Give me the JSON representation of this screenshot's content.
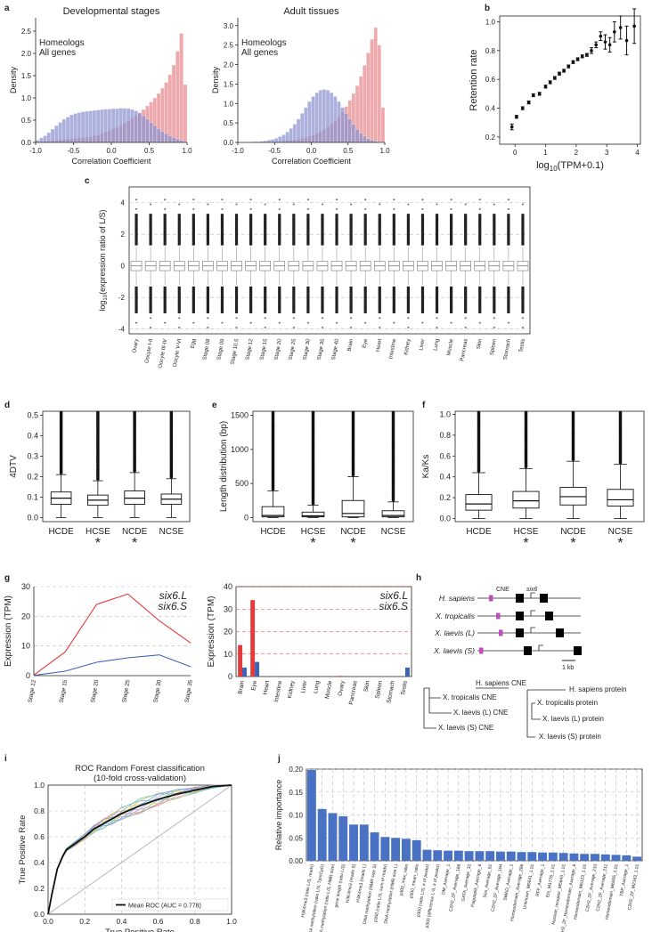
{
  "panels": [
    "a",
    "b",
    "c",
    "d",
    "e",
    "f",
    "g",
    "h",
    "i",
    "j"
  ],
  "colors": {
    "homeolog": "#e7888c",
    "allgenes": "#8c92cf",
    "overlap": "#a8578a",
    "red": "#e33b3b",
    "blue": "#3c62b6",
    "bar": "#4a72c4"
  },
  "chart_data": [
    {
      "id": "a1",
      "type": "bar",
      "title": "Developmental stages",
      "xlabel": "Correlation Coefficient",
      "ylabel": "Density",
      "xlim": [
        -1,
        1
      ],
      "ylim": [
        0,
        2.8
      ],
      "xticks": [
        "-1.0",
        "-0.5",
        "0.0",
        "0.5",
        "1.0"
      ],
      "yticks": [
        "0.0",
        "0.5",
        "1.0",
        "1.5",
        "2.0",
        "2.5"
      ],
      "legend": [
        "Homeologs",
        "All genes"
      ],
      "x": [
        -0.975,
        -0.925,
        -0.875,
        -0.825,
        -0.775,
        -0.725,
        -0.675,
        -0.625,
        -0.575,
        -0.525,
        -0.475,
        -0.425,
        -0.375,
        -0.325,
        -0.275,
        -0.225,
        -0.175,
        -0.125,
        -0.075,
        -0.025,
        0.025,
        0.075,
        0.125,
        0.175,
        0.225,
        0.275,
        0.325,
        0.375,
        0.425,
        0.475,
        0.525,
        0.575,
        0.625,
        0.675,
        0.725,
        0.775,
        0.825,
        0.875,
        0.925,
        0.975
      ],
      "series": [
        {
          "name": "Homeologs",
          "values": [
            0.01,
            0.02,
            0.03,
            0.03,
            0.04,
            0.05,
            0.05,
            0.06,
            0.07,
            0.08,
            0.09,
            0.1,
            0.11,
            0.12,
            0.13,
            0.15,
            0.17,
            0.2,
            0.23,
            0.26,
            0.3,
            0.34,
            0.38,
            0.43,
            0.48,
            0.54,
            0.6,
            0.67,
            0.74,
            0.82,
            0.91,
            1.0,
            1.1,
            1.22,
            1.35,
            1.52,
            1.74,
            2.05,
            2.45,
            1.3
          ]
        },
        {
          "name": "All genes",
          "values": [
            0.05,
            0.1,
            0.15,
            0.22,
            0.3,
            0.38,
            0.45,
            0.52,
            0.57,
            0.62,
            0.65,
            0.67,
            0.69,
            0.7,
            0.71,
            0.72,
            0.73,
            0.74,
            0.75,
            0.75,
            0.76,
            0.76,
            0.77,
            0.77,
            0.76,
            0.74,
            0.71,
            0.66,
            0.6,
            0.53,
            0.45,
            0.38,
            0.31,
            0.25,
            0.2,
            0.15,
            0.11,
            0.08,
            0.05,
            0.02
          ]
        }
      ]
    },
    {
      "id": "a2",
      "type": "bar",
      "title": "Adult tissues",
      "xlabel": "Correlation Coefficient",
      "ylabel": "Density",
      "xlim": [
        -1,
        1
      ],
      "ylim": [
        0,
        3.2
      ],
      "xticks": [
        "-1.0",
        "-0.5",
        "0.0",
        "0.5",
        "1.0"
      ],
      "yticks": [
        "0.0",
        "0.5",
        "1.0",
        "1.5",
        "2.0",
        "2.5",
        "3.0"
      ],
      "legend": [
        "Homeologs",
        "All genes"
      ],
      "x": [
        -0.975,
        -0.925,
        -0.875,
        -0.825,
        -0.775,
        -0.725,
        -0.675,
        -0.625,
        -0.575,
        -0.525,
        -0.475,
        -0.425,
        -0.375,
        -0.325,
        -0.275,
        -0.225,
        -0.175,
        -0.125,
        -0.075,
        -0.025,
        0.025,
        0.075,
        0.125,
        0.175,
        0.225,
        0.275,
        0.325,
        0.375,
        0.425,
        0.475,
        0.525,
        0.575,
        0.625,
        0.675,
        0.725,
        0.775,
        0.825,
        0.875,
        0.925,
        0.975
      ],
      "series": [
        {
          "name": "Homeologs",
          "values": [
            0,
            0,
            0,
            0,
            0,
            0,
            0.01,
            0.01,
            0.01,
            0.02,
            0.02,
            0.03,
            0.04,
            0.05,
            0.06,
            0.07,
            0.09,
            0.11,
            0.13,
            0.16,
            0.19,
            0.23,
            0.28,
            0.33,
            0.4,
            0.47,
            0.56,
            0.66,
            0.78,
            0.92,
            1.08,
            1.26,
            1.46,
            1.7,
            1.98,
            2.3,
            2.65,
            2.95,
            2.5,
            0.9
          ]
        },
        {
          "name": "All genes",
          "values": [
            0,
            0,
            0.01,
            0.01,
            0.02,
            0.02,
            0.03,
            0.04,
            0.06,
            0.08,
            0.11,
            0.15,
            0.2,
            0.27,
            0.36,
            0.47,
            0.6,
            0.75,
            0.9,
            1.05,
            1.18,
            1.28,
            1.34,
            1.36,
            1.34,
            1.28,
            1.18,
            1.05,
            0.9,
            0.75,
            0.6,
            0.46,
            0.34,
            0.24,
            0.16,
            0.1,
            0.06,
            0.03,
            0.02,
            0.01
          ]
        }
      ]
    },
    {
      "id": "b",
      "type": "scatter",
      "xlabel": "log10(TPM+0.1)",
      "ylabel": "Retention rate",
      "xlim": [
        -0.5,
        4.1
      ],
      "ylim": [
        0.15,
        1.04
      ],
      "xticks": [
        "0",
        "1",
        "2",
        "3",
        "4"
      ],
      "yticks": [
        "0.2",
        "0.4",
        "0.6",
        "0.8",
        "1.0"
      ],
      "x": [
        -0.1,
        0.05,
        0.25,
        0.45,
        0.6,
        0.8,
        1.0,
        1.15,
        1.3,
        1.45,
        1.6,
        1.75,
        1.9,
        2.05,
        2.2,
        2.35,
        2.5,
        2.65,
        2.8,
        2.95,
        3.1,
        3.25,
        3.45,
        3.65,
        3.9
      ],
      "y": [
        0.27,
        0.34,
        0.4,
        0.44,
        0.49,
        0.5,
        0.55,
        0.58,
        0.61,
        0.64,
        0.66,
        0.69,
        0.72,
        0.74,
        0.76,
        0.77,
        0.8,
        0.84,
        0.9,
        0.86,
        0.84,
        0.93,
        0.96,
        0.87,
        0.97
      ],
      "err": [
        0.02,
        0.01,
        0.01,
        0.01,
        0.01,
        0.01,
        0.01,
        0.01,
        0.01,
        0.01,
        0.01,
        0.01,
        0.01,
        0.01,
        0.01,
        0.01,
        0.02,
        0.02,
        0.03,
        0.05,
        0.05,
        0.07,
        0.08,
        0.1,
        0.12
      ]
    },
    {
      "id": "c",
      "type": "box",
      "ylabel": "log10(expression ratio of L/S)",
      "ylim": [
        -4.3,
        5
      ],
      "yticks": [
        "-4",
        "-2",
        "0",
        "2",
        "4"
      ],
      "categories": [
        "Ovary",
        "Oocyte I-II",
        "Oocyte III-IV",
        "Oocyte V-VI",
        "Egg",
        "Stage 08",
        "Stage 09",
        "Stage 10.5",
        "Stage 12",
        "Stage 15",
        "Stage 20",
        "Stage 25",
        "Stage 30",
        "Stage 35",
        "Stage 40",
        "Brain",
        "Eye",
        "Heart",
        "Intestine",
        "Kidney",
        "Liver",
        "Lung",
        "Muscle",
        "Pancreas",
        "Skin",
        "Spleen",
        "Stomach",
        "Testis"
      ]
    },
    {
      "id": "d",
      "type": "box",
      "ylabel": "4DTV",
      "ylim": [
        -0.02,
        0.52
      ],
      "yticks": [
        "0.0",
        "0.1",
        "0.2",
        "0.3",
        "0.4",
        "0.5"
      ],
      "categories": [
        "HCDE",
        "HCSE",
        "NCDE",
        "NCSE"
      ],
      "significant": [
        false,
        true,
        true,
        false
      ],
      "stats": [
        {
          "min": 0.0,
          "q1": 0.065,
          "med": 0.095,
          "q3": 0.125,
          "max": 0.21
        },
        {
          "min": 0.0,
          "q1": 0.06,
          "med": 0.085,
          "q3": 0.11,
          "max": 0.18
        },
        {
          "min": 0.0,
          "q1": 0.065,
          "med": 0.095,
          "q3": 0.13,
          "max": 0.22
        },
        {
          "min": 0.0,
          "q1": 0.065,
          "med": 0.09,
          "q3": 0.115,
          "max": 0.19
        }
      ]
    },
    {
      "id": "e",
      "type": "box",
      "ylabel": "Length distribution (bp)",
      "ylim": [
        -60,
        1560
      ],
      "yticks": [
        "0",
        "500",
        "1000",
        "1500"
      ],
      "categories": [
        "HCDE",
        "HCSE",
        "NCDE",
        "NCSE"
      ],
      "significant": [
        false,
        true,
        true,
        false
      ],
      "stats": [
        {
          "min": 0,
          "q1": 10,
          "med": 30,
          "q3": 160,
          "max": 390
        },
        {
          "min": 0,
          "q1": 10,
          "med": 25,
          "q3": 80,
          "max": 180
        },
        {
          "min": 0,
          "q1": 10,
          "med": 60,
          "q3": 250,
          "max": 600
        },
        {
          "min": 0,
          "q1": 10,
          "med": 30,
          "q3": 100,
          "max": 230
        }
      ]
    },
    {
      "id": "f",
      "type": "box",
      "ylabel": "Ka/Ks",
      "ylim": [
        -0.03,
        1.03
      ],
      "yticks": [
        "0.0",
        "0.2",
        "0.4",
        "0.6",
        "0.8",
        "1.0"
      ],
      "categories": [
        "HCDE",
        "HCSE",
        "NCDE",
        "NCSE"
      ],
      "significant": [
        false,
        true,
        true,
        true
      ],
      "stats": [
        {
          "min": 0.0,
          "q1": 0.08,
          "med": 0.14,
          "q3": 0.23,
          "max": 0.44
        },
        {
          "min": 0.0,
          "q1": 0.1,
          "med": 0.17,
          "q3": 0.26,
          "max": 0.48
        },
        {
          "min": 0.0,
          "q1": 0.13,
          "med": 0.21,
          "q3": 0.3,
          "max": 0.55
        },
        {
          "min": 0.0,
          "q1": 0.12,
          "med": 0.18,
          "q3": 0.28,
          "max": 0.52
        }
      ]
    },
    {
      "id": "g1",
      "type": "line",
      "ylabel": "Expression (TPM)",
      "ylim": [
        0,
        30
      ],
      "yticks": [
        "0",
        "10",
        "20",
        "30"
      ],
      "categories": [
        "Stage 12",
        "Stage 15",
        "Stage 20",
        "Stage 25",
        "Stage 30",
        "Stage 35"
      ],
      "series": [
        {
          "name": "six6.L",
          "values": [
            0.2,
            8,
            24,
            27.5,
            18.5,
            11
          ]
        },
        {
          "name": "six6.S",
          "values": [
            0.1,
            1.5,
            4.5,
            6,
            7,
            3
          ]
        }
      ]
    },
    {
      "id": "g2",
      "type": "bar",
      "ylabel": "Expression (TPM)",
      "ylim": [
        0,
        40
      ],
      "yticks": [
        "0",
        "10",
        "20",
        "30",
        "40"
      ],
      "categories": [
        "Brain",
        "Eye",
        "Heart",
        "Intestine",
        "Kidney",
        "Liver",
        "Lung",
        "Muscle",
        "Ovary",
        "Pancreas",
        "Skin",
        "Spleen",
        "Stomach",
        "Testis"
      ],
      "series": [
        {
          "name": "six6.L",
          "values": [
            14,
            34,
            0,
            0,
            0,
            0,
            0,
            0,
            0.3,
            0,
            0,
            0,
            0,
            0
          ]
        },
        {
          "name": "six6.S",
          "values": [
            4,
            6.5,
            0,
            0,
            0,
            0,
            0,
            0,
            0,
            0,
            0,
            0,
            0,
            4
          ]
        }
      ]
    },
    {
      "id": "i",
      "type": "line",
      "title": "ROC Random Forest classification",
      "subtitle": "(10-fold cross-validation)",
      "xlabel": "True Positive Rate",
      "ylabel": "True Positive Rate",
      "xlim": [
        0,
        1
      ],
      "ylim": [
        0,
        1
      ],
      "xticks": [
        "0.0",
        "0.2",
        "0.4",
        "0.6",
        "0.8",
        "1.0"
      ],
      "yticks": [
        "0.0",
        "0.2",
        "0.4",
        "0.6",
        "0.8",
        "1.0"
      ],
      "legend": [
        "Mean ROC (AUC = 0.778)"
      ],
      "mean_roc": {
        "x": [
          0,
          0.02,
          0.05,
          0.08,
          0.1,
          0.15,
          0.2,
          0.25,
          0.3,
          0.35,
          0.4,
          0.5,
          0.6,
          0.7,
          0.8,
          0.9,
          1.0
        ],
        "y": [
          0,
          0.15,
          0.35,
          0.45,
          0.5,
          0.55,
          0.6,
          0.66,
          0.7,
          0.74,
          0.78,
          0.84,
          0.89,
          0.93,
          0.96,
          0.99,
          1.0
        ]
      }
    },
    {
      "id": "j",
      "type": "bar",
      "ylabel": "Relative importance",
      "ylim": [
        0,
        0.2
      ],
      "yticks": [
        "0.00",
        "0.05",
        "0.10",
        "0.15",
        "0.20"
      ],
      "categories": [
        "H3K4me3 (ratio L/S, reads)",
        "DNA methylation (ratio L/S, TpmCpG)",
        "DNA methylation (ratio L/S, HMR size)",
        "gene length (ratio L/S)",
        "H3K4me3 (reads S)",
        "H3K4me3 (reads L)",
        "DNA methylation (HMR size S)",
        "p300 (ratio L/S, sum of reads)",
        "DNA methylation (HMR size L)",
        "p300_max_ratio",
        "p300_mean_ratio",
        "p300 (ratio L/S, # of peaks)",
        "p300 (difference L-S, # of peaks)",
        "DM_Average_1",
        "C2H2_ZF_Average_188",
        "GATA_Average_32",
        "Paguoplik_Average_6",
        "Sox_Average_91",
        "C2H2_ZF_Average_194",
        "SMAD_Average_1",
        "Homeodomain_Average_286",
        "Unknown_M5641_1.01",
        "RFF_Average_1",
        "Ets_M1778_1.01",
        "Nuclear_receptor_M5643_1.01",
        "C2H2_ZF_Homeodomain_Average_6",
        "Homeodomain_M6123_1.01",
        "C2H2_ZF_Average_210",
        "C2H2_ZF_Average_211",
        "Homeodomain_M6005_1.01",
        "TBP_Average_1",
        "C2H2_ZF_M2163_1.01"
      ],
      "values": [
        0.198,
        0.113,
        0.104,
        0.097,
        0.079,
        0.079,
        0.062,
        0.052,
        0.05,
        0.048,
        0.045,
        0.024,
        0.023,
        0.022,
        0.022,
        0.021,
        0.021,
        0.021,
        0.02,
        0.02,
        0.019,
        0.019,
        0.018,
        0.018,
        0.017,
        0.016,
        0.015,
        0.015,
        0.014,
        0.013,
        0.012,
        0.009
      ]
    }
  ],
  "diagram_h": {
    "labels": [
      "H. sapiens",
      "X. tropicalis",
      "X. laevis (L)",
      "X. laevis (S)"
    ],
    "cne_label": "CNE",
    "gene_label": "six6",
    "scale": "1 kb",
    "tree1": [
      "H. sapiens CNE",
      "X. tropicalis CNE",
      "X. laevis (L) CNE",
      "X. laevis (S) CNE"
    ],
    "tree2": [
      "H. sapiens protein",
      "X. tropicalis protein",
      "X. laevis (L) protein",
      "X. laevis (S) protein"
    ]
  }
}
